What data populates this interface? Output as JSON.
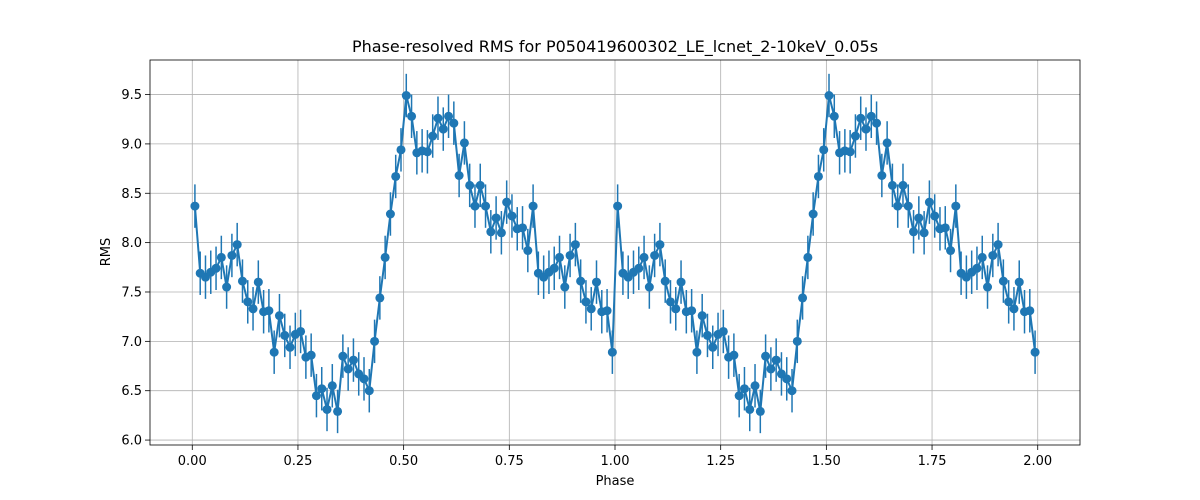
{
  "chart_data": {
    "type": "scatter",
    "title": "Phase-resolved RMS for P050419600302_LE_lcnet_2-10keV_0.05s",
    "xlabel": "Phase",
    "ylabel": "RMS",
    "xlim": [
      -0.1,
      2.1
    ],
    "ylim": [
      5.95,
      9.85
    ],
    "xticks": [
      0.0,
      0.25,
      0.5,
      0.75,
      1.0,
      1.25,
      1.5,
      1.75,
      2.0
    ],
    "xtick_labels": [
      "0.00",
      "0.25",
      "0.50",
      "0.75",
      "1.00",
      "1.25",
      "1.50",
      "1.75",
      "2.00"
    ],
    "yticks": [
      6.0,
      6.5,
      7.0,
      7.5,
      8.0,
      8.5,
      9.0,
      9.5
    ],
    "ytick_labels": [
      "6.0",
      "6.5",
      "7.0",
      "7.5",
      "8.0",
      "8.5",
      "9.0",
      "9.5"
    ],
    "grid": true,
    "color": "#1f77b4",
    "errorbar": 0.22,
    "x": [
      0.0125,
      0.0375,
      0.0625,
      0.0875,
      0.1125,
      0.1375,
      0.1625,
      0.1875,
      0.2125,
      0.2375,
      0.2625,
      0.2875,
      0.3125,
      0.3375,
      0.3625,
      0.3875,
      0.4125,
      0.4375,
      0.4625,
      0.4875,
      0.5125,
      0.5375,
      0.5625,
      0.5875,
      0.6125,
      0.6375,
      0.6625,
      0.6875,
      0.7125,
      0.7375,
      0.7625,
      0.7875,
      0.8125,
      0.8375,
      0.8625,
      0.8875,
      0.9125,
      0.9375,
      0.9625,
      0.9875,
      1.0125,
      1.0375,
      1.0625,
      1.0875,
      1.1125,
      1.1375,
      1.1625,
      1.1875,
      1.2125,
      1.2375,
      1.2625,
      1.2875,
      1.3125,
      1.3375,
      1.3625,
      1.3875,
      1.4125,
      1.4375,
      1.4625,
      1.4875,
      1.5125,
      1.5375,
      1.5625,
      1.5875,
      1.6125,
      1.6375,
      1.6625,
      1.6875,
      1.7125,
      1.7375,
      1.7625,
      1.7875,
      1.8125,
      1.8375,
      1.8625,
      1.8875,
      1.9125,
      1.9375,
      1.9625,
      1.9875
    ],
    "x_half": [
      0.00625,
      0.01875,
      0.03125,
      0.04375,
      0.05625,
      0.06875,
      0.08125,
      0.09375,
      0.10625,
      0.11875,
      0.13125,
      0.14375,
      0.15625,
      0.16875,
      0.18125,
      0.19375,
      0.20625,
      0.21875,
      0.23125,
      0.24375,
      0.25625,
      0.26875,
      0.28125,
      0.29375,
      0.30625,
      0.31875,
      0.33125,
      0.34375,
      0.35625,
      0.36875,
      0.38125,
      0.39375,
      0.40625,
      0.41875,
      0.43125,
      0.44375,
      0.45625,
      0.46875,
      0.48125,
      0.49375,
      0.50625,
      0.51875,
      0.53125,
      0.54375,
      0.55625,
      0.56875,
      0.58125,
      0.59375,
      0.60625,
      0.61875,
      0.63125,
      0.64375,
      0.65625,
      0.66875,
      0.68125,
      0.69375,
      0.70625,
      0.71875,
      0.73125,
      0.74375,
      0.75625,
      0.76875,
      0.78125,
      0.79375,
      0.80625,
      0.81875,
      0.83125,
      0.84375,
      0.85625,
      0.86875,
      0.88125,
      0.89375,
      0.90625,
      0.91875,
      0.93125,
      0.94375,
      0.95625,
      0.96875,
      0.98125,
      0.99375
    ],
    "y_half": [
      8.37,
      7.69,
      7.65,
      7.7,
      7.74,
      7.85,
      7.55,
      7.87,
      7.98,
      7.61,
      7.4,
      7.33,
      7.6,
      7.3,
      7.31,
      6.89,
      7.26,
      7.06,
      6.94,
      7.07,
      7.1,
      6.84,
      6.86,
      6.45,
      6.52,
      6.31,
      6.55,
      6.29,
      6.85,
      6.72,
      6.81,
      6.67,
      6.62,
      6.5,
      7.0,
      7.44,
      7.85,
      8.29,
      8.67,
      8.94,
      9.49,
      9.28,
      8.91,
      8.93,
      8.92,
      9.08,
      9.26,
      9.15,
      9.28,
      9.21,
      8.68,
      9.01,
      8.58,
      8.37,
      8.58,
      8.37,
      8.11,
      8.25,
      8.1,
      8.41,
      8.27,
      8.14,
      8.15,
      7.92,
      8.37,
      7.69,
      7.65,
      7.7,
      7.74,
      7.85,
      7.55,
      7.87,
      7.98,
      7.61,
      7.4,
      7.33,
      7.6,
      7.3,
      7.31,
      6.89
    ]
  }
}
